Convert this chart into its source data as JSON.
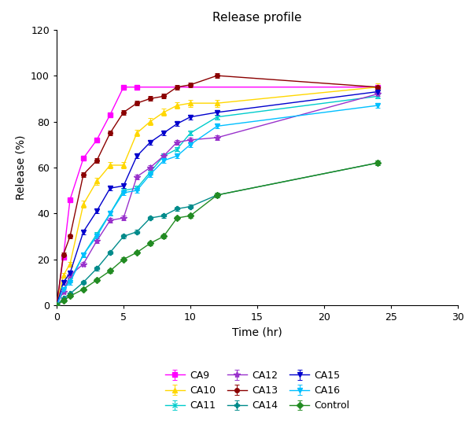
{
  "title": "Release profile",
  "xlabel": "Time (hr)",
  "ylabel": "Release (%)",
  "xlim": [
    0,
    30
  ],
  "ylim": [
    0,
    120
  ],
  "xticks": [
    0,
    5,
    10,
    15,
    20,
    25,
    30
  ],
  "yticks": [
    0,
    20,
    40,
    60,
    80,
    100,
    120
  ],
  "series": {
    "CA9": {
      "color": "#FF00FF",
      "marker": "s",
      "markersize": 4,
      "time": [
        0,
        0.5,
        1,
        2,
        3,
        4,
        5,
        6,
        24
      ],
      "release": [
        0,
        21,
        46,
        64,
        72,
        83,
        95,
        95,
        95
      ],
      "yerr": [
        0,
        1.0,
        1.0,
        1.0,
        1.0,
        1.0,
        1.0,
        1.0,
        1.0
      ]
    },
    "CA10": {
      "color": "#FFD700",
      "marker": "^",
      "markersize": 4,
      "time": [
        0,
        0.5,
        1,
        2,
        3,
        4,
        5,
        6,
        7,
        8,
        9,
        10,
        12,
        24
      ],
      "release": [
        0,
        13,
        18,
        44,
        54,
        61,
        61,
        75,
        80,
        84,
        87,
        88,
        88,
        95
      ],
      "yerr": [
        0,
        1.0,
        1.0,
        1.5,
        1.5,
        1.5,
        1.5,
        1.5,
        1.5,
        1.5,
        1.5,
        1.5,
        1.5,
        1.5
      ]
    },
    "CA11": {
      "color": "#00CCCC",
      "marker": "x",
      "markersize": 5,
      "time": [
        0,
        0.5,
        1,
        2,
        3,
        4,
        5,
        6,
        7,
        8,
        9,
        10,
        12,
        24
      ],
      "release": [
        0,
        7,
        11,
        22,
        31,
        40,
        50,
        51,
        58,
        65,
        68,
        75,
        82,
        91
      ],
      "yerr": [
        0,
        1.0,
        1.0,
        1.0,
        1.0,
        1.0,
        1.0,
        1.0,
        1.0,
        1.0,
        1.0,
        1.0,
        1.0,
        1.0
      ]
    },
    "CA12": {
      "color": "#9932CC",
      "marker": "*",
      "markersize": 6,
      "time": [
        0,
        0.5,
        1,
        2,
        3,
        4,
        5,
        6,
        7,
        8,
        9,
        10,
        12,
        24
      ],
      "release": [
        0,
        6,
        13,
        18,
        28,
        37,
        38,
        56,
        60,
        65,
        71,
        72,
        73,
        92
      ],
      "yerr": [
        0,
        1.0,
        1.0,
        1.0,
        1.0,
        1.0,
        1.0,
        1.0,
        1.0,
        1.0,
        1.0,
        1.0,
        1.0,
        1.0
      ]
    },
    "CA13": {
      "color": "#8B0000",
      "marker": "o",
      "markersize": 4,
      "time": [
        0,
        0.5,
        1,
        2,
        3,
        4,
        5,
        6,
        7,
        8,
        9,
        10,
        12,
        24
      ],
      "release": [
        0,
        22,
        30,
        57,
        63,
        75,
        84,
        88,
        90,
        91,
        95,
        96,
        100,
        95
      ],
      "yerr": [
        0,
        1.0,
        1.0,
        1.0,
        1.0,
        1.0,
        1.0,
        1.0,
        1.0,
        1.0,
        1.0,
        1.0,
        1.0,
        1.0
      ]
    },
    "CA14": {
      "color": "#008B8B",
      "marker": "P",
      "markersize": 4,
      "time": [
        0,
        0.5,
        1,
        2,
        3,
        4,
        5,
        6,
        7,
        8,
        9,
        10,
        12,
        24
      ],
      "release": [
        0,
        3,
        5,
        10,
        16,
        23,
        30,
        32,
        38,
        39,
        42,
        43,
        48,
        62
      ],
      "yerr": [
        0,
        0.5,
        0.5,
        0.8,
        0.8,
        0.8,
        0.8,
        0.8,
        0.8,
        0.8,
        0.8,
        0.8,
        1.0,
        1.0
      ]
    },
    "CA15": {
      "color": "#0000CD",
      "marker": "v",
      "markersize": 4,
      "time": [
        0,
        0.5,
        1,
        2,
        3,
        4,
        5,
        6,
        7,
        8,
        9,
        10,
        12,
        24
      ],
      "release": [
        0,
        10,
        14,
        32,
        41,
        51,
        52,
        65,
        71,
        75,
        79,
        82,
        84,
        93
      ],
      "yerr": [
        0,
        1.0,
        1.0,
        1.0,
        1.0,
        1.0,
        1.0,
        1.0,
        1.0,
        1.0,
        1.0,
        1.0,
        1.0,
        1.0
      ]
    },
    "CA16": {
      "color": "#00BFFF",
      "marker": "v",
      "markersize": 4,
      "time": [
        0,
        0.5,
        1,
        2,
        3,
        4,
        5,
        6,
        7,
        8,
        9,
        10,
        12,
        24
      ],
      "release": [
        0,
        7,
        10,
        22,
        30,
        40,
        49,
        50,
        57,
        63,
        65,
        70,
        78,
        87
      ],
      "yerr": [
        0,
        1.0,
        1.0,
        1.0,
        1.0,
        1.0,
        1.0,
        1.0,
        1.0,
        1.0,
        1.0,
        1.0,
        1.0,
        1.0
      ]
    },
    "Control": {
      "color": "#228B22",
      "marker": "D",
      "markersize": 4,
      "time": [
        0,
        0.5,
        1,
        2,
        3,
        4,
        5,
        6,
        7,
        8,
        9,
        10,
        12,
        24
      ],
      "release": [
        0,
        2,
        4,
        7,
        11,
        15,
        20,
        23,
        27,
        30,
        38,
        39,
        48,
        62
      ],
      "yerr": [
        0,
        0.5,
        0.5,
        0.5,
        0.8,
        0.8,
        0.8,
        0.8,
        0.8,
        0.8,
        0.8,
        0.8,
        1.0,
        1.0
      ]
    }
  },
  "background_color": "#FFFFFF"
}
